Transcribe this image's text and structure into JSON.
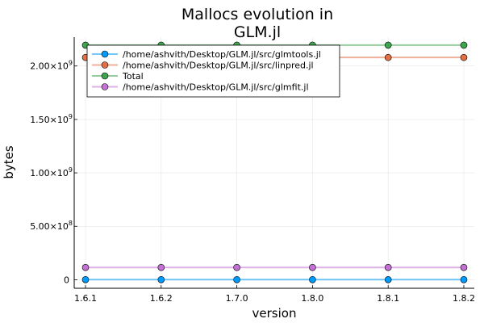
{
  "chart_data": {
    "type": "line",
    "title_lines": [
      "Mallocs evolution in",
      "GLM.jl"
    ],
    "xlabel": "version",
    "ylabel": "bytes",
    "categories": [
      "1.6.1",
      "1.6.2",
      "1.7.0",
      "1.8.0",
      "1.8.1",
      "1.8.2"
    ],
    "ylim": [
      -80000000,
      2270000000
    ],
    "yticks": [
      {
        "value": 0,
        "base": "0",
        "exp": ""
      },
      {
        "value": 500000000,
        "base": "5.00×10",
        "exp": "8"
      },
      {
        "value": 1000000000,
        "base": "1.00×10",
        "exp": "9"
      },
      {
        "value": 1500000000,
        "base": "1.50×10",
        "exp": "9"
      },
      {
        "value": 2000000000,
        "base": "2.00×10",
        "exp": "9"
      }
    ],
    "grid": true,
    "legend_position": "top-left",
    "series": [
      {
        "name": "/home/ashvith/Desktop/GLM.jl/src/glmtools.jl",
        "color": "#009AFA",
        "values": [
          1000000,
          1000000,
          1000000,
          1000000,
          1000000,
          1000000
        ]
      },
      {
        "name": "/home/ashvith/Desktop/GLM.jl/src/linpred.jl",
        "color": "#E36F47",
        "values": [
          2080000000,
          2080000000,
          2080000000,
          2080000000,
          2080000000,
          2080000000
        ]
      },
      {
        "name": "Total",
        "color": "#3EA44E",
        "values": [
          2195000000,
          2195000000,
          2195000000,
          2195000000,
          2195000000,
          2195000000
        ]
      },
      {
        "name": "/home/ashvith/Desktop/GLM.jl/src/glmfit.jl",
        "color": "#C371D2",
        "values": [
          115000000,
          115000000,
          115000000,
          115000000,
          115000000,
          115000000
        ]
      }
    ]
  }
}
